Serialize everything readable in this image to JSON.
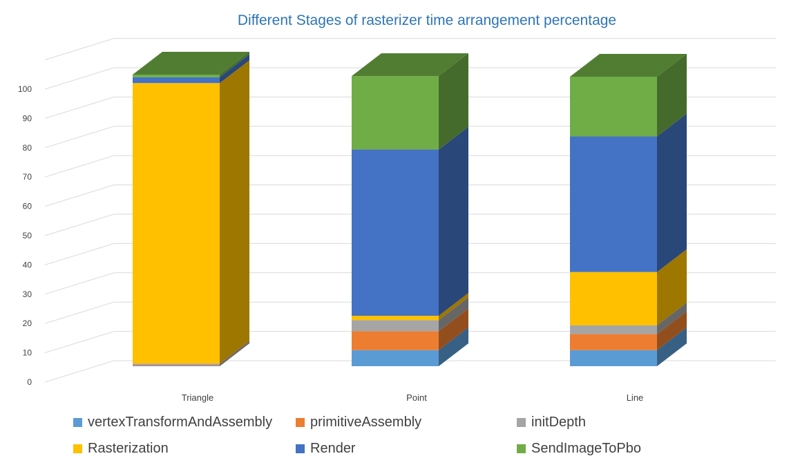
{
  "chart_data": {
    "type": "bar",
    "subtype": "3d-stacked-column",
    "title": "Different Stages of rasterizer time arrangement percentage",
    "xlabel": "",
    "ylabel": "",
    "ylim": [
      0,
      100
    ],
    "yticks": [
      0,
      10,
      20,
      30,
      40,
      50,
      60,
      70,
      80,
      90,
      100
    ],
    "grid": true,
    "legend_position": "bottom",
    "categories": [
      "Triangle",
      "Point",
      "Line"
    ],
    "series": [
      {
        "name": "vertexTransformAndAssembly",
        "color": "#5b9bd5",
        "values": [
          0.3,
          5.5,
          5.5
        ]
      },
      {
        "name": "primitiveAssembly",
        "color": "#ed7d31",
        "values": [
          0.3,
          6.5,
          5.5
        ]
      },
      {
        "name": "initDepth",
        "color": "#a5a5a5",
        "values": [
          0.3,
          3.8,
          3.0
        ]
      },
      {
        "name": "Rasterization",
        "color": "#ffc000",
        "values": [
          96.2,
          1.5,
          18.3
        ]
      },
      {
        "name": "Render",
        "color": "#4472c4",
        "values": [
          2.0,
          57.0,
          46.5
        ]
      },
      {
        "name": "SendImageToPbo",
        "color": "#70ad47",
        "values": [
          0.9,
          25.2,
          20.5
        ]
      }
    ]
  }
}
